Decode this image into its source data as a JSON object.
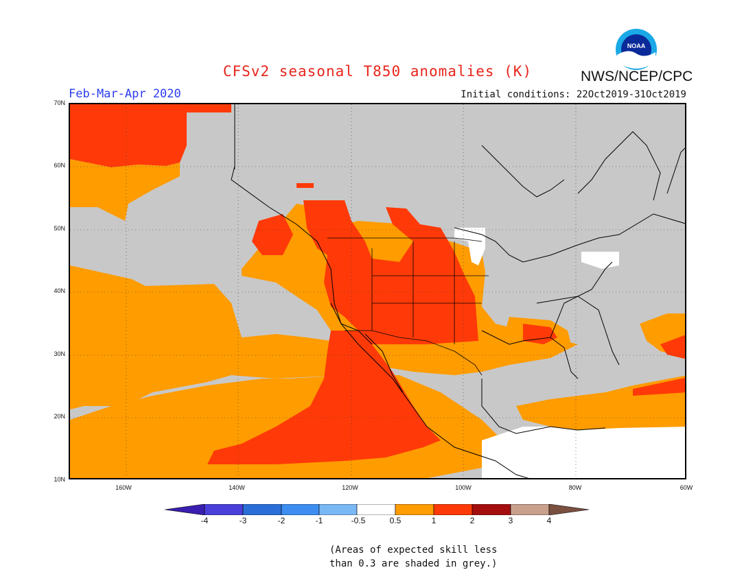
{
  "header": {
    "title": "CFSv2 seasonal T850 anomalies (K)",
    "org": "NWS/NCEP/CPC",
    "logo_text": "NOAA",
    "period": "Feb-Mar-Apr 2020",
    "initial_conditions": "Initial conditions: 22Oct2019-31Oct2019"
  },
  "axes": {
    "lat_labels": [
      "70N",
      "60N",
      "50N",
      "40N",
      "30N",
      "20N",
      "10N"
    ],
    "lon_labels": [
      "160W",
      "140W",
      "120W",
      "100W",
      "80W",
      "60W"
    ]
  },
  "colorbar": {
    "labels": [
      "-4",
      "-3",
      "-2",
      "-1",
      "-0.5",
      "0.5",
      "1",
      "2",
      "3",
      "4"
    ],
    "colors": [
      "#3a1eb0",
      "#4a3fd8",
      "#2a6ed8",
      "#3d8ef0",
      "#7ab8f5",
      "#ffffff",
      "#ff9c00",
      "#ff3a08",
      "#a40e0e",
      "#c8a08c",
      "#7a5040"
    ]
  },
  "legend_colors": {
    "grey": "#c8c8c8",
    "orange": "#ff9c00",
    "red": "#ff3a08",
    "white": "#ffffff"
  },
  "note": {
    "line1": "(Areas of expected skill less",
    "line2": "than 0.3 are shaded in grey.)"
  }
}
